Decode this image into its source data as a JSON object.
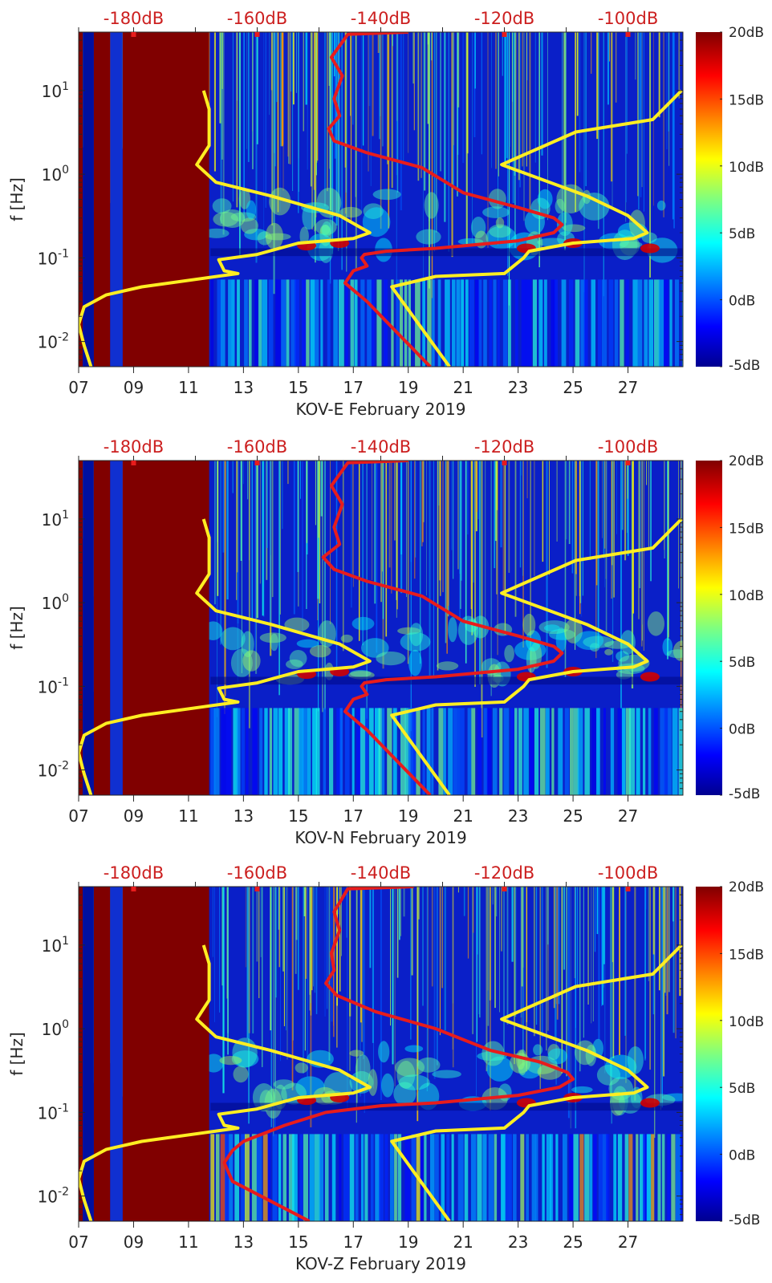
{
  "chart_data": [
    {
      "type": "heatmap",
      "subtype": "spectrogram",
      "component": "KOV-E",
      "xlabel": "KOV-E February 2019",
      "ylabel": "f [Hz]",
      "x_ticks": [
        "07",
        "09",
        "11",
        "13",
        "15",
        "17",
        "19",
        "21",
        "23",
        "25",
        "27"
      ],
      "x_range_days": [
        7,
        29
      ],
      "y_scale": "log",
      "y_ticks": [
        "10^1",
        "10^0",
        "10^-1",
        "10^-2"
      ],
      "y_range_hz": [
        0.005,
        50
      ],
      "top_axis_ticks": [
        "-180dB",
        "-160dB",
        "-140dB",
        "-120dB",
        "-100dB"
      ],
      "colorbar": {
        "ticks": [
          "20dB",
          "15dB",
          "10dB",
          "5dB",
          "0dB",
          "-5dB"
        ],
        "range_db": [
          -5,
          20
        ],
        "colormap": "jet"
      },
      "data_gap_days": [
        [
          7.0,
          7.15
        ],
        [
          7.55,
          8.15
        ],
        [
          8.6,
          11.75
        ]
      ],
      "yellow_curves": [
        {
          "name": "yellow-curve-left",
          "points": [
            [
              11.55,
              10
            ],
            [
              11.75,
              6
            ],
            [
              11.75,
              2.2
            ],
            [
              11.3,
              1.3
            ],
            [
              12.0,
              0.8
            ],
            [
              14.0,
              0.55
            ],
            [
              16.5,
              0.32
            ],
            [
              17.6,
              0.2
            ],
            [
              17.0,
              0.17
            ],
            [
              15.0,
              0.15
            ],
            [
              13.5,
              0.11
            ],
            [
              12.1,
              0.095
            ],
            [
              12.3,
              0.07
            ],
            [
              12.8,
              0.065
            ],
            [
              9.3,
              0.045
            ],
            [
              8.0,
              0.036
            ],
            [
              7.2,
              0.026
            ],
            [
              7.0,
              0.016
            ],
            [
              7.2,
              0.009
            ],
            [
              7.45,
              0.005
            ]
          ]
        },
        {
          "name": "yellow-curve-right",
          "points": [
            [
              28.95,
              10
            ],
            [
              27.9,
              4.5
            ],
            [
              25.1,
              3.2
            ],
            [
              22.4,
              1.3
            ],
            [
              25.5,
              0.55
            ],
            [
              27.0,
              0.32
            ],
            [
              27.7,
              0.2
            ],
            [
              27.2,
              0.17
            ],
            [
              25.0,
              0.15
            ],
            [
              23.4,
              0.12
            ],
            [
              23.2,
              0.1
            ],
            [
              22.5,
              0.065
            ],
            [
              20.0,
              0.06
            ],
            [
              18.4,
              0.045
            ],
            [
              20.5,
              0.005
            ]
          ]
        }
      ],
      "red_curve": {
        "name": "red-noise-model-curve",
        "points": [
          [
            19.0,
            50
          ],
          [
            16.8,
            47
          ],
          [
            16.2,
            25
          ],
          [
            16.6,
            15
          ],
          [
            16.3,
            8
          ],
          [
            16.5,
            5
          ],
          [
            16.1,
            3.5
          ],
          [
            16.3,
            2.5
          ],
          [
            17.5,
            1.8
          ],
          [
            19.5,
            1.2
          ],
          [
            21.0,
            0.6
          ],
          [
            23.0,
            0.4
          ],
          [
            24.3,
            0.3
          ],
          [
            24.6,
            0.25
          ],
          [
            24.3,
            0.2
          ],
          [
            23.0,
            0.16
          ],
          [
            20.0,
            0.13
          ],
          [
            18.2,
            0.12
          ],
          [
            17.4,
            0.11
          ],
          [
            17.3,
            0.1
          ],
          [
            17.5,
            0.08
          ],
          [
            17.0,
            0.07
          ],
          [
            16.7,
            0.05
          ],
          [
            17.5,
            0.03
          ],
          [
            19.8,
            0.005
          ]
        ]
      },
      "red_markers_db": [
        -180,
        -160,
        -120,
        -100
      ]
    },
    {
      "type": "heatmap",
      "subtype": "spectrogram",
      "component": "KOV-N",
      "xlabel": "KOV-N February 2019",
      "ylabel": "f [Hz]",
      "x_ticks": [
        "07",
        "09",
        "11",
        "13",
        "15",
        "17",
        "19",
        "21",
        "23",
        "25",
        "27"
      ],
      "x_range_days": [
        7,
        29
      ],
      "y_scale": "log",
      "y_ticks": [
        "10^1",
        "10^0",
        "10^-1",
        "10^-2"
      ],
      "y_range_hz": [
        0.005,
        50
      ],
      "top_axis_ticks": [
        "-180dB",
        "-160dB",
        "-140dB",
        "-120dB",
        "-100dB"
      ],
      "colorbar": {
        "ticks": [
          "20dB",
          "15dB",
          "10dB",
          "5dB",
          "0dB",
          "-5dB"
        ],
        "range_db": [
          -5,
          20
        ],
        "colormap": "jet"
      },
      "data_gap_days": [
        [
          7.0,
          7.15
        ],
        [
          7.55,
          8.15
        ],
        [
          8.6,
          11.75
        ]
      ],
      "yellow_curves": [
        {
          "name": "yellow-curve-left",
          "points": [
            [
              11.55,
              10
            ],
            [
              11.75,
              6
            ],
            [
              11.75,
              2.2
            ],
            [
              11.3,
              1.3
            ],
            [
              12.0,
              0.8
            ],
            [
              14.0,
              0.55
            ],
            [
              16.5,
              0.32
            ],
            [
              17.6,
              0.2
            ],
            [
              17.0,
              0.17
            ],
            [
              15.0,
              0.15
            ],
            [
              13.5,
              0.11
            ],
            [
              12.1,
              0.095
            ],
            [
              12.3,
              0.07
            ],
            [
              12.8,
              0.065
            ],
            [
              9.3,
              0.045
            ],
            [
              8.0,
              0.036
            ],
            [
              7.2,
              0.026
            ],
            [
              7.0,
              0.016
            ],
            [
              7.2,
              0.009
            ],
            [
              7.45,
              0.005
            ]
          ]
        },
        {
          "name": "yellow-curve-right",
          "points": [
            [
              28.95,
              10
            ],
            [
              27.9,
              4.5
            ],
            [
              25.1,
              3.2
            ],
            [
              22.4,
              1.3
            ],
            [
              25.5,
              0.55
            ],
            [
              27.0,
              0.32
            ],
            [
              27.7,
              0.2
            ],
            [
              27.2,
              0.17
            ],
            [
              25.0,
              0.15
            ],
            [
              23.4,
              0.12
            ],
            [
              23.2,
              0.1
            ],
            [
              22.5,
              0.065
            ],
            [
              20.0,
              0.06
            ],
            [
              18.4,
              0.045
            ],
            [
              20.5,
              0.005
            ]
          ]
        }
      ],
      "red_curve": {
        "name": "red-noise-model-curve",
        "points": [
          [
            19.0,
            50
          ],
          [
            16.8,
            47
          ],
          [
            16.2,
            25
          ],
          [
            16.6,
            15
          ],
          [
            16.3,
            8
          ],
          [
            16.5,
            5
          ],
          [
            15.9,
            3.5
          ],
          [
            16.3,
            2.5
          ],
          [
            17.5,
            1.8
          ],
          [
            19.5,
            1.2
          ],
          [
            21.0,
            0.6
          ],
          [
            23.0,
            0.4
          ],
          [
            24.3,
            0.3
          ],
          [
            24.6,
            0.25
          ],
          [
            24.3,
            0.2
          ],
          [
            23.0,
            0.16
          ],
          [
            20.0,
            0.13
          ],
          [
            18.2,
            0.12
          ],
          [
            17.4,
            0.11
          ],
          [
            17.3,
            0.1
          ],
          [
            17.5,
            0.08
          ],
          [
            17.0,
            0.07
          ],
          [
            16.7,
            0.05
          ],
          [
            17.5,
            0.03
          ],
          [
            19.8,
            0.005
          ]
        ]
      },
      "red_markers_db": [
        -180,
        -160,
        -120,
        -100
      ]
    },
    {
      "type": "heatmap",
      "subtype": "spectrogram",
      "component": "KOV-Z",
      "xlabel": "KOV-Z February 2019",
      "ylabel": "f [Hz]",
      "x_ticks": [
        "07",
        "09",
        "11",
        "13",
        "15",
        "17",
        "19",
        "21",
        "23",
        "25",
        "27"
      ],
      "x_range_days": [
        7,
        29
      ],
      "y_scale": "log",
      "y_ticks": [
        "10^1",
        "10^0",
        "10^-1",
        "10^-2"
      ],
      "y_range_hz": [
        0.005,
        50
      ],
      "top_axis_ticks": [
        "-180dB",
        "-160dB",
        "-140dB",
        "-120dB",
        "-100dB"
      ],
      "colorbar": {
        "ticks": [
          "20dB",
          "15dB",
          "10dB",
          "5dB",
          "0dB",
          "-5dB"
        ],
        "range_db": [
          -5,
          20
        ],
        "colormap": "jet"
      },
      "data_gap_days": [
        [
          7.0,
          7.15
        ],
        [
          7.55,
          8.15
        ],
        [
          8.6,
          11.75
        ]
      ],
      "yellow_curves": [
        {
          "name": "yellow-curve-left",
          "points": [
            [
              11.55,
              10
            ],
            [
              11.75,
              6
            ],
            [
              11.75,
              2.2
            ],
            [
              11.3,
              1.3
            ],
            [
              12.0,
              0.8
            ],
            [
              14.0,
              0.55
            ],
            [
              16.5,
              0.32
            ],
            [
              17.6,
              0.2
            ],
            [
              17.0,
              0.17
            ],
            [
              15.0,
              0.15
            ],
            [
              13.5,
              0.11
            ],
            [
              12.1,
              0.095
            ],
            [
              12.3,
              0.07
            ],
            [
              12.8,
              0.065
            ],
            [
              9.3,
              0.045
            ],
            [
              8.0,
              0.036
            ],
            [
              7.2,
              0.026
            ],
            [
              7.0,
              0.016
            ],
            [
              7.2,
              0.009
            ],
            [
              7.45,
              0.005
            ]
          ]
        },
        {
          "name": "yellow-curve-right",
          "points": [
            [
              28.95,
              10
            ],
            [
              27.9,
              4.5
            ],
            [
              25.1,
              3.2
            ],
            [
              22.4,
              1.3
            ],
            [
              25.5,
              0.55
            ],
            [
              27.0,
              0.32
            ],
            [
              27.7,
              0.2
            ],
            [
              27.2,
              0.17
            ],
            [
              25.0,
              0.15
            ],
            [
              23.4,
              0.12
            ],
            [
              23.2,
              0.1
            ],
            [
              22.5,
              0.065
            ],
            [
              20.0,
              0.06
            ],
            [
              18.4,
              0.045
            ],
            [
              20.5,
              0.005
            ]
          ]
        }
      ],
      "red_curve": {
        "name": "red-noise-model-curve",
        "points": [
          [
            19.2,
            50
          ],
          [
            16.8,
            47
          ],
          [
            16.3,
            25
          ],
          [
            16.5,
            15
          ],
          [
            16.2,
            8
          ],
          [
            16.3,
            5
          ],
          [
            16.0,
            3.5
          ],
          [
            16.4,
            2.5
          ],
          [
            17.8,
            1.6
          ],
          [
            20.0,
            1.0
          ],
          [
            22.0,
            0.55
          ],
          [
            23.8,
            0.4
          ],
          [
            24.8,
            0.3
          ],
          [
            25.0,
            0.25
          ],
          [
            24.5,
            0.2
          ],
          [
            23.0,
            0.16
          ],
          [
            20.0,
            0.13
          ],
          [
            18.0,
            0.12
          ],
          [
            16.0,
            0.1
          ],
          [
            14.5,
            0.07
          ],
          [
            13.0,
            0.045
          ],
          [
            12.6,
            0.035
          ],
          [
            12.3,
            0.025
          ],
          [
            12.6,
            0.015
          ],
          [
            15.4,
            0.005
          ]
        ]
      },
      "red_markers_db": [
        -180,
        -160,
        -120,
        -100
      ]
    }
  ],
  "colors": {
    "yellow_curve": "#ffee22",
    "red_curve": "#e81c1c",
    "top_axis_text": "#cc1f1f",
    "gap_fill": "#800000",
    "background_low": "#0a1fbf"
  }
}
